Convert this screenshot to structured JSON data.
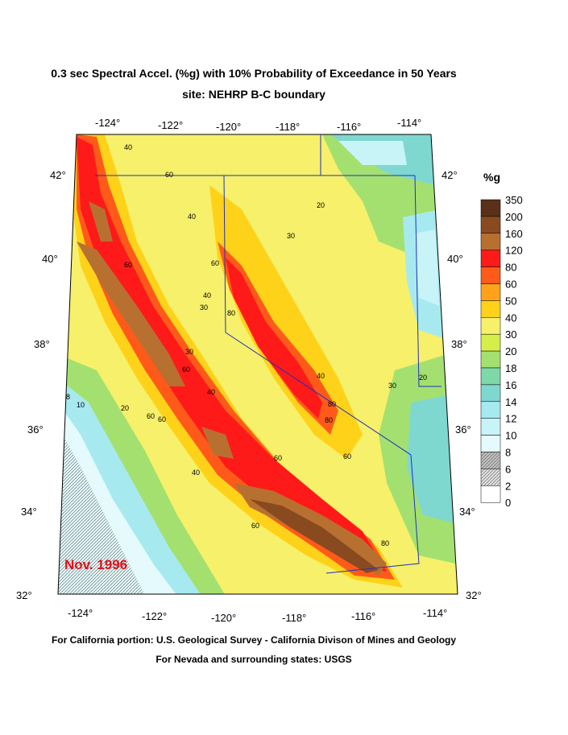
{
  "title": {
    "line1": "0.3 sec Spectral Accel. (%g) with 10% Probability of Exceedance in 50 Years",
    "line2": "site: NEHRP B-C boundary"
  },
  "date_label": "Nov. 1996",
  "credits": [
    "For California portion: U.S. Geological Survey - California Divison of Mines and Geology",
    "For Nevada and surrounding states: USGS"
  ],
  "axes": {
    "top_longitudes": [
      "-124°",
      "-122°",
      "-120°",
      "-118°",
      "-116°",
      "-114°"
    ],
    "bottom_longitudes": [
      "-124°",
      "-122°",
      "-120°",
      "-118°",
      "-116°",
      "-114°"
    ],
    "left_latitudes": [
      "42°",
      "40°",
      "38°",
      "36°",
      "34°",
      "32°"
    ],
    "right_latitudes": [
      "42°",
      "40°",
      "38°",
      "36°",
      "34°",
      "32°"
    ]
  },
  "legend": {
    "title": "%g",
    "levels": [
      {
        "value": "350",
        "color": "#5a3018"
      },
      {
        "value": "200",
        "color": "#8a4a20"
      },
      {
        "value": "160",
        "color": "#b87030"
      },
      {
        "value": "120",
        "color": "#ff1a1a"
      },
      {
        "value": "80",
        "color": "#ff5a1a"
      },
      {
        "value": "60",
        "color": "#ffa21a"
      },
      {
        "value": "50",
        "color": "#ffd21a"
      },
      {
        "value": "40",
        "color": "#f6f06a"
      },
      {
        "value": "30",
        "color": "#d6ee4a"
      },
      {
        "value": "20",
        "color": "#a4e070"
      },
      {
        "value": "18",
        "color": "#7ed8a8"
      },
      {
        "value": "16",
        "color": "#7ed8d0"
      },
      {
        "value": "14",
        "color": "#a6eaf0"
      },
      {
        "value": "12",
        "color": "#c8f4f8"
      },
      {
        "value": "10",
        "color": "#e4fafc"
      },
      {
        "value": "8",
        "color": "#c0c0c0"
      },
      {
        "value": "6",
        "color": "#e0e0e0"
      },
      {
        "value": "2",
        "color": "#ffffff"
      },
      {
        "value": "0",
        "color": ""
      }
    ]
  },
  "contour_labels": [
    "40",
    "60",
    "40",
    "20",
    "30",
    "60",
    "60",
    "40",
    "30",
    "80",
    "30",
    "40",
    "60",
    "80",
    "30",
    "20",
    "40",
    "60",
    "20",
    "60",
    "60",
    "80",
    "60",
    "40",
    "60",
    "80",
    "8",
    "10"
  ]
}
